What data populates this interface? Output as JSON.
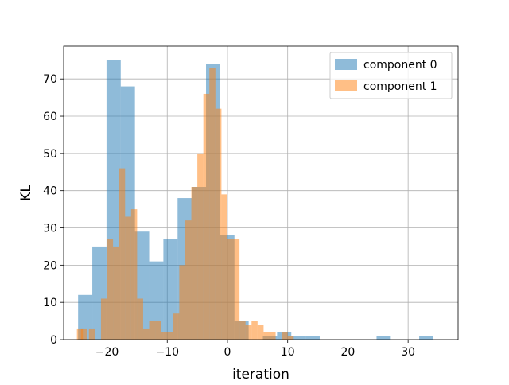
{
  "chart_data": {
    "type": "bar",
    "xlabel": "iteration",
    "ylabel": "KL",
    "xlim": [
      -27.2,
      38.3
    ],
    "ylim": [
      0,
      78.8
    ],
    "x_ticks": [
      -20,
      -10,
      0,
      10,
      20,
      30
    ],
    "y_ticks": [
      0,
      10,
      20,
      30,
      40,
      50,
      60,
      70
    ],
    "grid": true,
    "legend_position": "upper right",
    "bin_width": 2.36,
    "series": [
      {
        "name": "component 0",
        "color": "#1f77b4",
        "alpha": 0.5,
        "bin_starts": [
          -24.8,
          -22.44,
          -20.08,
          -17.72,
          -15.36,
          -13.0,
          -10.64,
          -8.28,
          -5.92,
          -3.56,
          -1.2,
          1.16,
          3.52,
          5.88,
          8.24,
          10.6,
          12.96,
          15.32,
          17.68,
          20.04,
          22.4,
          24.76,
          27.12,
          29.48,
          31.84,
          34.2
        ],
        "counts": [
          12,
          25,
          75,
          68,
          29,
          21,
          27,
          38,
          41,
          74,
          28,
          5,
          0,
          1,
          2,
          1,
          1,
          0,
          0,
          0,
          0,
          1,
          0,
          0,
          1,
          0
        ]
      },
      {
        "name": "component 1",
        "color": "#ff7f0e",
        "alpha": 0.5,
        "bin_starts": [
          -25.0,
          -24.33,
          -23.0,
          -21.0,
          -20.0,
          -19.0,
          -18.0,
          -17.0,
          -16.0,
          -15.0,
          -14.0,
          -13.0,
          -12.0,
          -11.0,
          -10.0,
          -9.0,
          -8.0,
          -7.0,
          -6.0,
          -5.0,
          -4.0,
          -3.0,
          -2.0,
          -1.0,
          0.0,
          1.0,
          2.0,
          3.0,
          4.0,
          5.0,
          6.0,
          7.0,
          8.0,
          9.0,
          10.0
        ],
        "counts": [
          3,
          3,
          3,
          11,
          27,
          25,
          46,
          33,
          35,
          11,
          3,
          5,
          5,
          2,
          2,
          7,
          20,
          32,
          41,
          50,
          66,
          73,
          62,
          39,
          27,
          27,
          5,
          4,
          5,
          4,
          2,
          2,
          0,
          2,
          1
        ],
        "bin_width": 1.0
      }
    ]
  }
}
